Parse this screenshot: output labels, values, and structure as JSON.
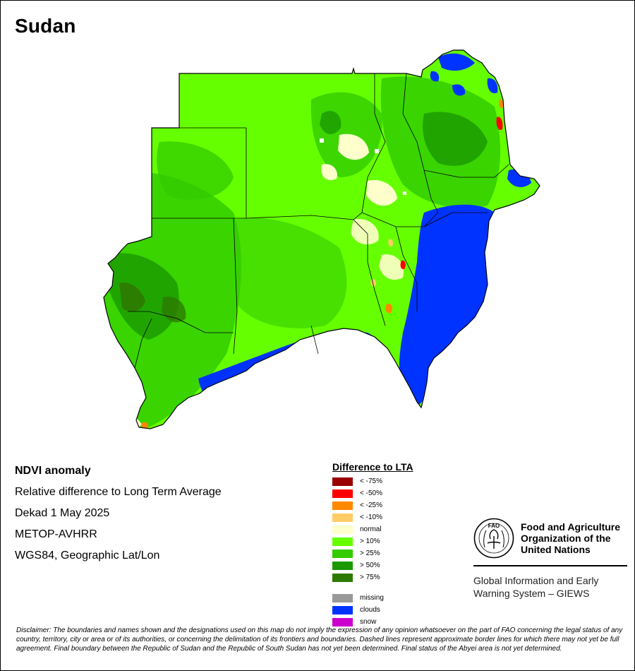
{
  "map": {
    "title": "Sudan",
    "colors": {
      "sea": "#ffffff",
      "green_light": "#66ff00",
      "green_mid": "#33cc00",
      "green_dark": "#1a9900",
      "green_darkest": "#2d7a00",
      "normal": "#ffffcc",
      "clouds": "#0033ff",
      "neg10": "#ffcc66",
      "neg25": "#ff8800",
      "neg50": "#ff0000",
      "border": "#000000"
    }
  },
  "info": {
    "heading": "NDVI anomaly",
    "line2": "Relative difference to Long Term Average",
    "line3": "Dekad 1 May 2025",
    "line4": "METOP-AVHRR",
    "line5": "WGS84, Geographic Lat/Lon"
  },
  "legend": {
    "title": "Difference to LTA",
    "items": [
      {
        "label": "< -75%",
        "color": "#990000"
      },
      {
        "label": "< -50%",
        "color": "#ff0000"
      },
      {
        "label": "< -25%",
        "color": "#ff8800"
      },
      {
        "label": "< -10%",
        "color": "#ffcc66"
      },
      {
        "label": "normal",
        "color": "#ffffcc"
      },
      {
        "label": "> 10%",
        "color": "#66ff00"
      },
      {
        "label": "> 25%",
        "color": "#33cc00"
      },
      {
        "label": "> 50%",
        "color": "#1a9900"
      },
      {
        "label": "> 75%",
        "color": "#2d7a00"
      }
    ],
    "extra": [
      {
        "label": "missing",
        "color": "#999999"
      },
      {
        "label": "clouds",
        "color": "#0033ff"
      },
      {
        "label": "snow",
        "color": "#cc00cc"
      }
    ]
  },
  "fao": {
    "logo_text": "FAO",
    "name_line1": "Food and Agriculture",
    "name_line2": "Organization of the",
    "name_line3": "United Nations",
    "giews_line1": "Global Information and Early",
    "giews_line2": "Warning System – GIEWS"
  },
  "disclaimer": "Disclaimer: The boundaries and names shown and the designations used on this map do not imply the expression of any opinion whatsoever on the part of FAO concerning the legal status of any country, territory, city or area or of its authorities, or concerning the delimitation of its frontiers and boundaries. Dashed lines represent approximate border lines for which there may not yet be full agreement.  Final boundary between the Republic of Sudan and the Republic of South Sudan has not yet been determined. Final status of the Abyei area is not yet determined."
}
